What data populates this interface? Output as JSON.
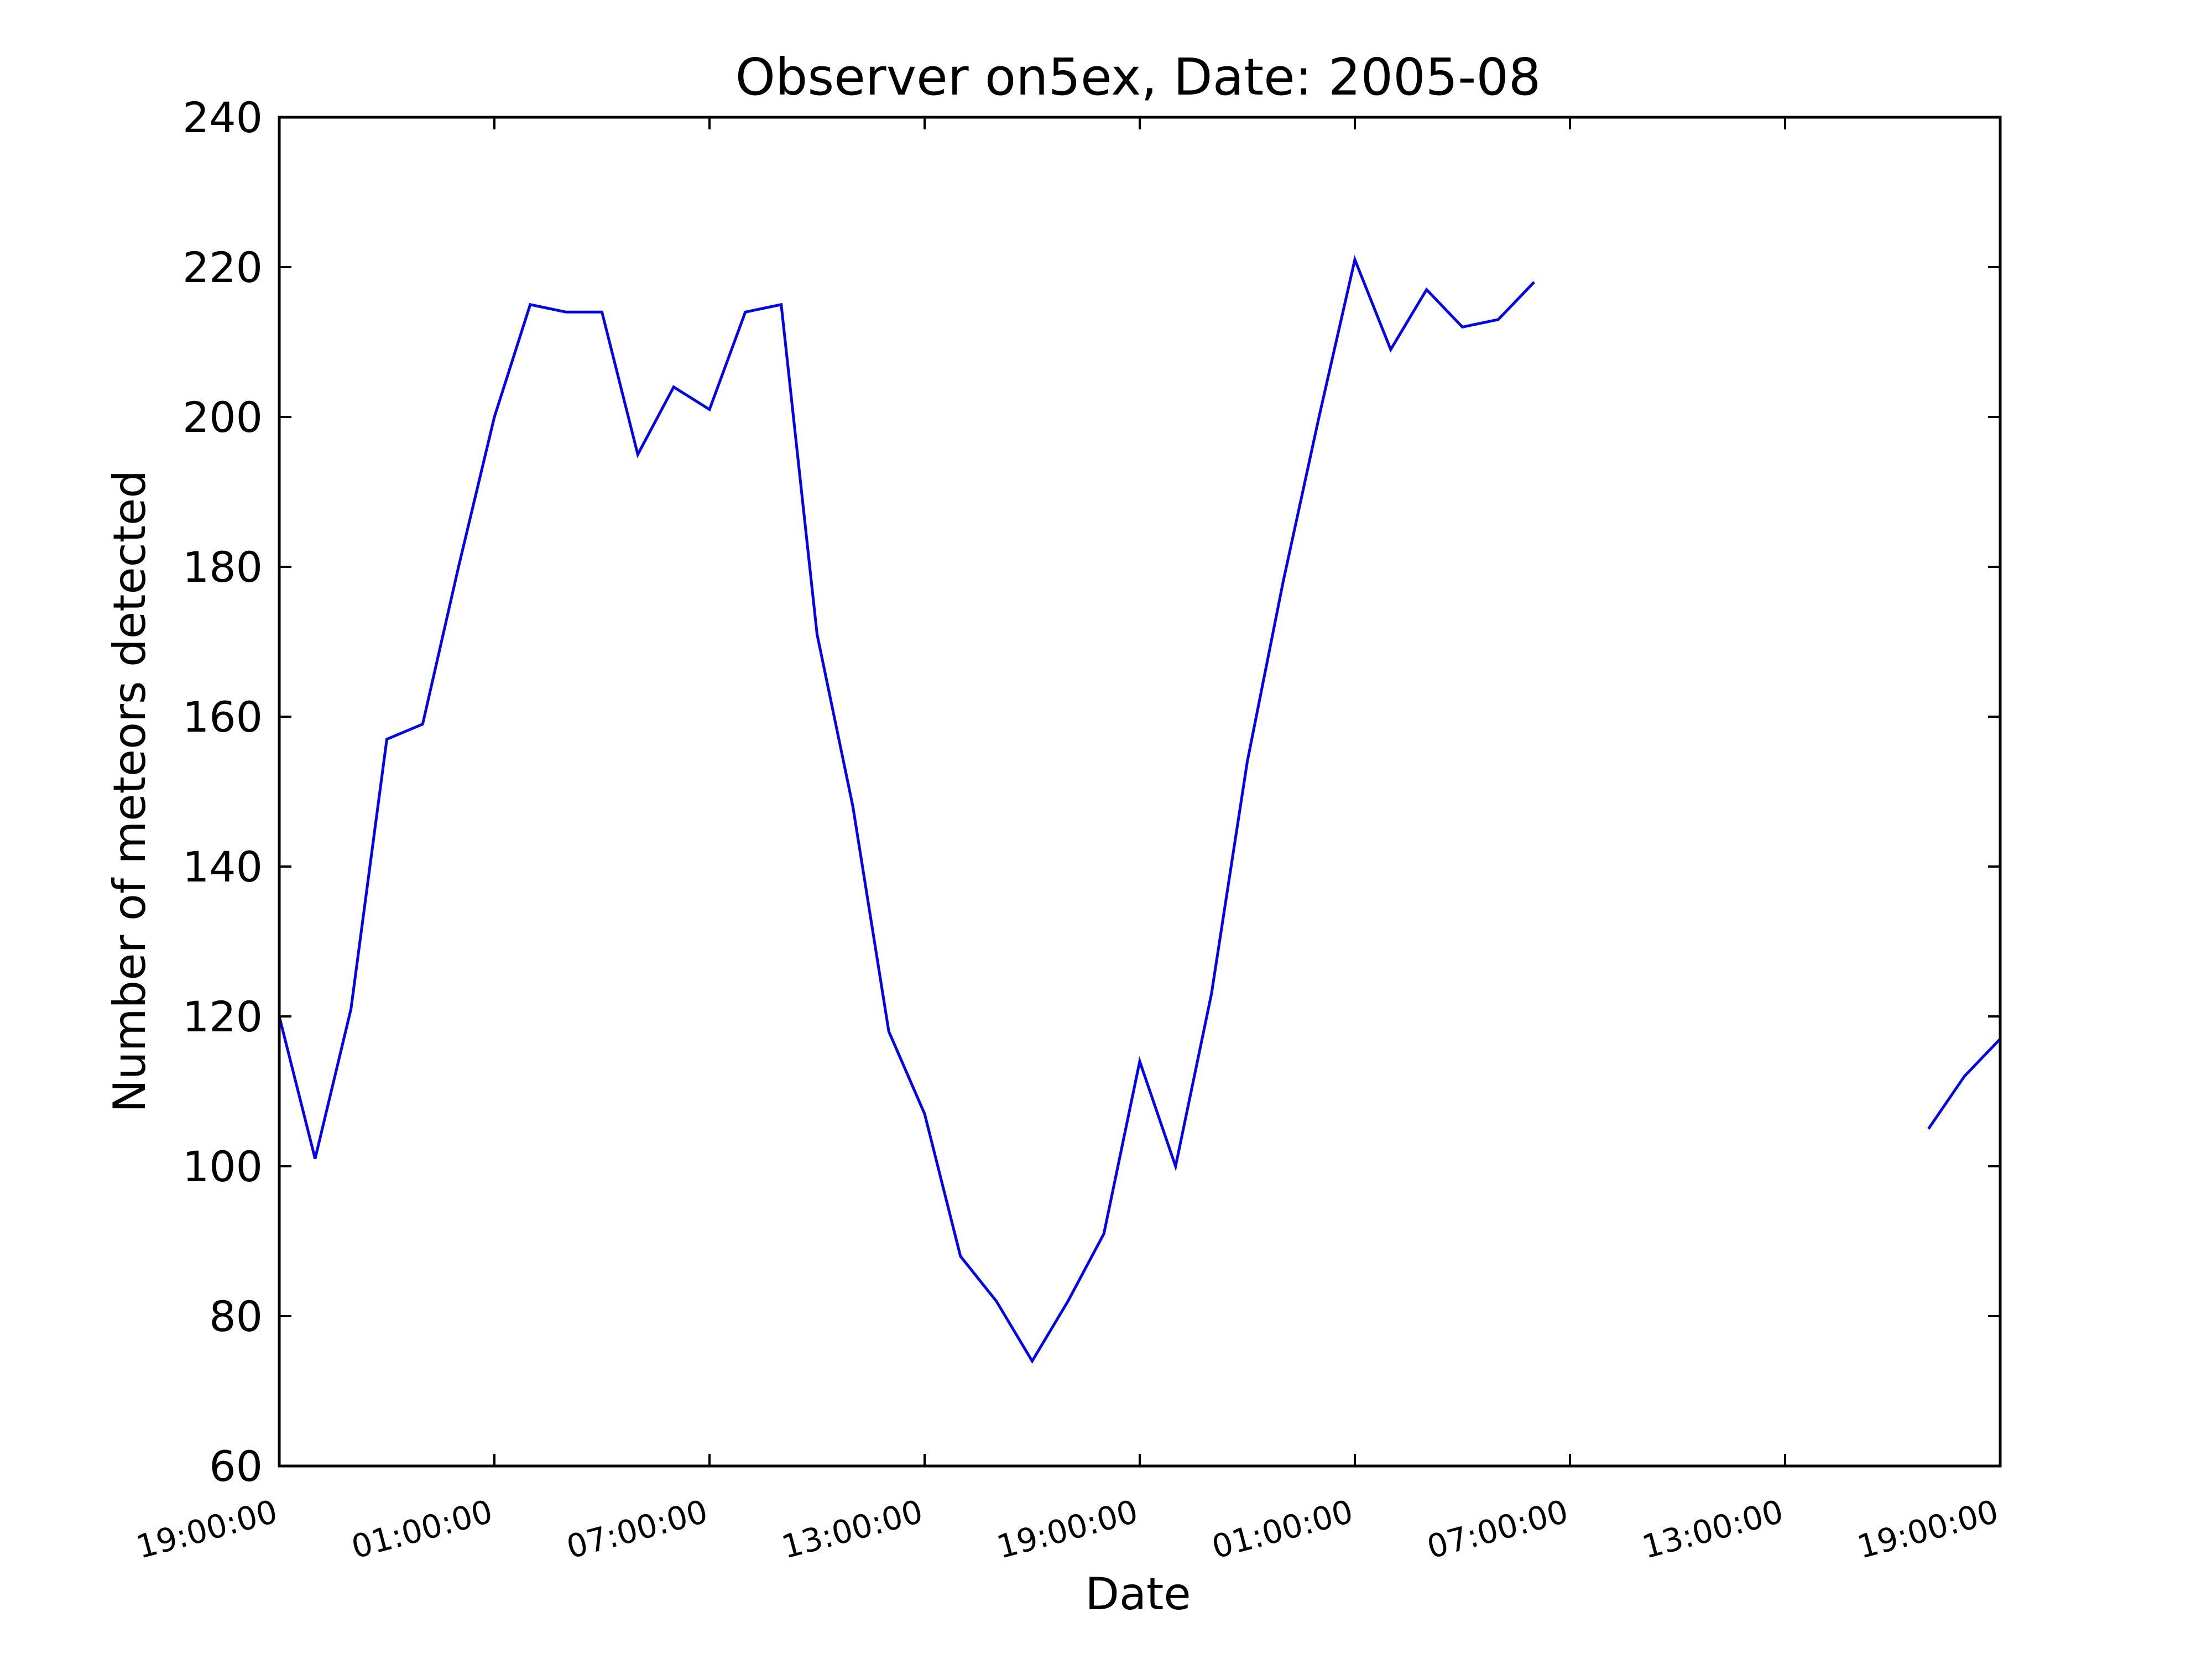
{
  "chart_data": {
    "type": "line",
    "title": "Observer on5ex, Date: 2005-08",
    "xlabel": "Date",
    "ylabel": "Number of meteors detected",
    "ylim": [
      60,
      240
    ],
    "yticks": [
      60,
      80,
      100,
      120,
      140,
      160,
      180,
      200,
      220,
      240
    ],
    "xlim": [
      "2005-08-11 19:00",
      "2005-08-13 19:00"
    ],
    "xtick_labels": [
      "19:00:00",
      "01:00:00",
      "07:00:00",
      "13:00:00",
      "19:00:00",
      "01:00:00",
      "07:00:00",
      "13:00:00",
      "19:00:00"
    ],
    "grid": false,
    "color": "#0000ff",
    "segments": [
      {
        "x": [
          "2005-08-11 19:00",
          "2005-08-11 20:00",
          "2005-08-11 21:00",
          "2005-08-11 22:00",
          "2005-08-11 23:00",
          "2005-08-12 00:00",
          "2005-08-12 01:00",
          "2005-08-12 02:00",
          "2005-08-12 03:00",
          "2005-08-12 04:00",
          "2005-08-12 05:00",
          "2005-08-12 06:00",
          "2005-08-12 07:00",
          "2005-08-12 08:00",
          "2005-08-12 09:00",
          "2005-08-12 10:00",
          "2005-08-12 11:00",
          "2005-08-12 12:00",
          "2005-08-12 13:00",
          "2005-08-12 14:00",
          "2005-08-12 15:00",
          "2005-08-12 16:00",
          "2005-08-12 17:00",
          "2005-08-12 18:00",
          "2005-08-12 19:00",
          "2005-08-12 20:00",
          "2005-08-12 21:00",
          "2005-08-12 22:00",
          "2005-08-12 23:00",
          "2005-08-13 00:00",
          "2005-08-13 01:00",
          "2005-08-13 02:00",
          "2005-08-13 03:00",
          "2005-08-13 04:00",
          "2005-08-13 05:00",
          "2005-08-13 06:00"
        ],
        "y": [
          120,
          101,
          121,
          157,
          159,
          180,
          200,
          215,
          214,
          214,
          195,
          204,
          201,
          214,
          215,
          171,
          148,
          118,
          107,
          88,
          82,
          74,
          82,
          91,
          114,
          100,
          123,
          154,
          178,
          200,
          221,
          209,
          217,
          212,
          213,
          218
        ]
      },
      {
        "x": [
          "2005-08-13 17:00",
          "2005-08-13 18:00",
          "2005-08-13 19:00"
        ],
        "y": [
          105,
          112,
          117
        ]
      }
    ]
  }
}
